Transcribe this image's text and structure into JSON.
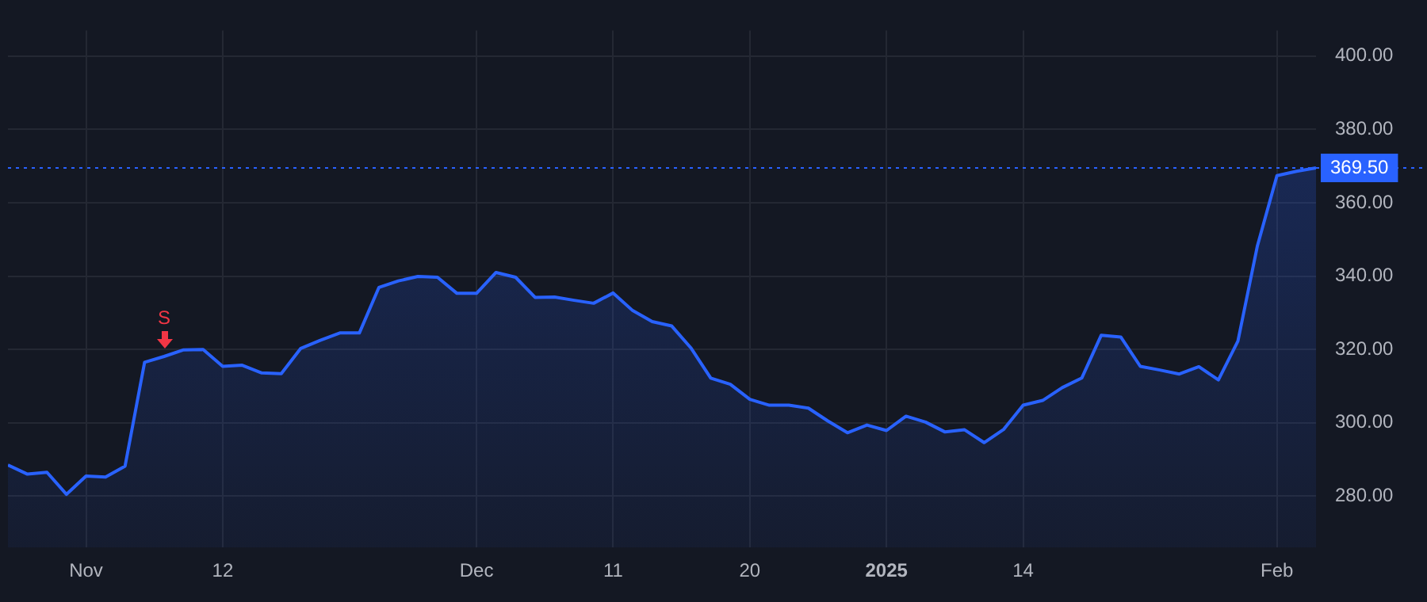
{
  "chart_data": {
    "type": "area",
    "categories": [
      null,
      null,
      null,
      null,
      "Nov",
      null,
      null,
      null,
      null,
      null,
      null,
      "12",
      null,
      null,
      null,
      null,
      null,
      null,
      null,
      null,
      null,
      null,
      null,
      null,
      "Dec",
      null,
      null,
      null,
      null,
      null,
      null,
      "11",
      null,
      null,
      null,
      null,
      null,
      null,
      "20",
      null,
      null,
      null,
      null,
      null,
      null,
      "2025",
      null,
      null,
      null,
      null,
      null,
      null,
      "14",
      null,
      null,
      null,
      null,
      null,
      null,
      null,
      null,
      null,
      null,
      null,
      null,
      "Feb",
      null,
      null
    ],
    "series": [
      {
        "color": "#2962ff",
        "values": [
          288.5,
          286.0,
          286.5,
          280.5,
          285.5,
          285.2,
          288.2,
          316.5,
          318.1,
          319.9,
          320.0,
          315.4,
          315.7,
          313.6,
          313.4,
          320.3,
          322.5,
          324.5,
          324.5,
          336.9,
          338.7,
          339.9,
          339.7,
          335.3,
          335.3,
          341.0,
          339.7,
          334.2,
          334.3,
          333.4,
          332.6,
          335.4,
          330.6,
          327.6,
          326.4,
          320.3,
          312.2,
          310.5,
          306.4,
          304.8,
          304.8,
          304.0,
          300.5,
          297.3,
          299.4,
          297.9,
          301.8,
          300.2,
          297.5,
          298.1,
          294.6,
          298.2,
          304.8,
          306.1,
          309.6,
          312.2,
          323.9,
          323.4,
          315.4,
          314.4,
          313.3,
          315.3,
          311.7,
          322.3,
          348.3,
          367.4,
          368.6,
          369.5
        ]
      }
    ],
    "ylim": [
      266,
      407
    ],
    "yticks": [
      {
        "value": 280,
        "label": "280.00"
      },
      {
        "value": 300,
        "label": "300.00"
      },
      {
        "value": 320,
        "label": "320.00"
      },
      {
        "value": 340,
        "label": "340.00"
      },
      {
        "value": 360,
        "label": "360.00"
      },
      {
        "value": 380,
        "label": "380.00"
      },
      {
        "value": 400,
        "label": "400.00"
      }
    ],
    "ref_lines": [
      {
        "axis": "y",
        "value": 369.5,
        "label": "369.50",
        "color": "#2962ff",
        "line_style": "dotted"
      }
    ],
    "annotations": [
      {
        "text": "S",
        "y": 318.1
      }
    ],
    "grid": true,
    "legend": false
  }
}
